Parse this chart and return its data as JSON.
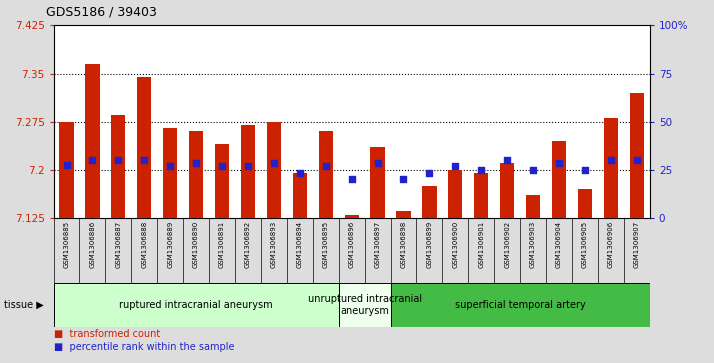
{
  "title": "GDS5186 / 39403",
  "samples": [
    "GSM1306885",
    "GSM1306886",
    "GSM1306887",
    "GSM1306888",
    "GSM1306889",
    "GSM1306890",
    "GSM1306891",
    "GSM1306892",
    "GSM1306893",
    "GSM1306894",
    "GSM1306895",
    "GSM1306896",
    "GSM1306897",
    "GSM1306898",
    "GSM1306899",
    "GSM1306900",
    "GSM1306901",
    "GSM1306902",
    "GSM1306903",
    "GSM1306904",
    "GSM1306905",
    "GSM1306906",
    "GSM1306907"
  ],
  "bar_values": [
    7.275,
    7.365,
    7.285,
    7.345,
    7.265,
    7.26,
    7.24,
    7.27,
    7.275,
    7.195,
    7.26,
    7.13,
    7.235,
    7.135,
    7.175,
    7.2,
    7.195,
    7.21,
    7.16,
    7.245,
    7.17,
    7.28,
    7.32
  ],
  "dot_values": [
    7.207,
    7.215,
    7.215,
    7.215,
    7.205,
    7.21,
    7.205,
    7.205,
    7.21,
    7.195,
    7.205,
    7.185,
    7.21,
    7.185,
    7.195,
    7.205,
    7.2,
    7.215,
    7.2,
    7.21,
    7.2,
    7.215,
    7.215
  ],
  "y_min": 7.125,
  "y_max": 7.425,
  "yticks": [
    7.125,
    7.2,
    7.275,
    7.35,
    7.425
  ],
  "ytick_labels": [
    "7.125",
    "7.2",
    "7.275",
    "7.35",
    "7.425"
  ],
  "right_yticks": [
    0,
    25,
    50,
    75,
    100
  ],
  "right_ytick_labels": [
    "0",
    "25",
    "50",
    "75",
    "100%"
  ],
  "hgrid_lines": [
    7.2,
    7.275,
    7.35
  ],
  "groups": [
    {
      "label": "ruptured intracranial aneurysm",
      "start": 0,
      "end": 11,
      "color": "#ccffcc"
    },
    {
      "label": "unruptured intracranial\naneurysm",
      "start": 11,
      "end": 13,
      "color": "#eeffee"
    },
    {
      "label": "superficial temporal artery",
      "start": 13,
      "end": 23,
      "color": "#44bb44"
    }
  ],
  "bar_color": "#cc2200",
  "dot_color": "#2222cc",
  "bar_width": 0.55,
  "background_color": "#dddddd",
  "plot_bg_color": "#ffffff",
  "title_color": "#000000",
  "left_axis_color": "#cc2200",
  "right_axis_color": "#2222cc",
  "xticklabel_bg": "#cccccc",
  "legend_items": [
    {
      "label": "transformed count",
      "color": "#cc2200"
    },
    {
      "label": "percentile rank within the sample",
      "color": "#2222cc"
    }
  ]
}
